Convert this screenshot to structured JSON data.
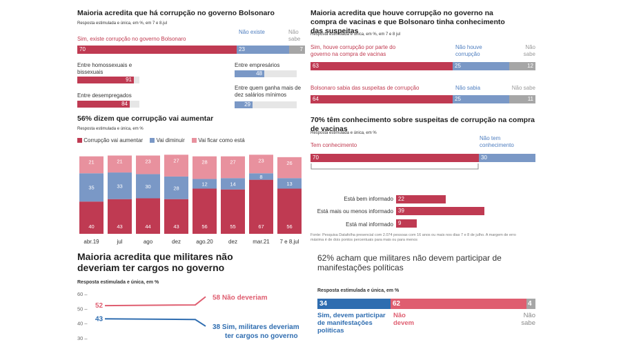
{
  "colors": {
    "red": "#bf3a52",
    "blue": "#7a98c6",
    "gray": "#a6a6a6",
    "pink": "#e8919e",
    "dark_blue": "#2f6db0",
    "light_red": "#df5e70"
  },
  "p1": {
    "title": "Maioria acredita que há corrupção no governo Bolsonaro",
    "subtitle": "Resposta estimulada e única, em %, em 7 e 8.jul",
    "labels": {
      "yes": "Sim, existe corrupção no governo Bolsonaro",
      "no": "Não existe",
      "nk": "Não sabe"
    },
    "values": {
      "yes": "70",
      "no": "23",
      "nk": "7"
    },
    "subgroups": [
      {
        "label": "Entre homossexuais e bissexuais",
        "value": "91"
      },
      {
        "label": "Entre desempregados",
        "value": "84"
      },
      {
        "label": "Entre empresários",
        "value": "48"
      },
      {
        "label": "Entre quem ganha mais de dez salários mínimos",
        "value": "29"
      }
    ]
  },
  "p2": {
    "title": "Maioria acredita que houve corrupção no governo na compra de vacinas e que Bolsonaro tinha conhecimento das suspeitas",
    "subtitle": "Resposta estimulada e única, em %, em 7 e 8 jul",
    "r1": {
      "yes_label": "Sim, houve corrupção por parte do governo na compra de vacinas",
      "no_label": "Não houve corrupção",
      "nk_label": "Não sabe",
      "yes": "63",
      "no": "25",
      "nk": "12"
    },
    "r2": {
      "yes_label": "Bolsonaro sabia das suspeitas de corrupção",
      "no_label": "Não sabia",
      "nk_label": "Não sabe",
      "yes": "64",
      "no": "25",
      "nk": "11"
    }
  },
  "p3": {
    "title": "56% dizem que corrupção vai aumentar",
    "subtitle": "Resposta estimulada e única, em %",
    "legend": [
      "Corrupção vai aumentar",
      "Vai diminuir",
      "Vai ficar como está"
    ]
  },
  "p4": {
    "title": "70% têm conhecimento sobre suspeitas de corrupção na compra de vacinas",
    "subtitle": "Resposta estimulada e única, em %",
    "yes_label": "Tem conhecimento",
    "no_label": "Não tem conhecimento",
    "yes": "70",
    "no": "30",
    "rows": [
      {
        "label": "Está bem informado",
        "value": "22"
      },
      {
        "label": "Está mais ou menos informado",
        "value": "39"
      },
      {
        "label": "Está mal informado",
        "value": "9"
      }
    ],
    "source": "Fonte: Pesquisa Datafolha presencial com 2.074 pessoas com 16 anos ou mais nos dias 7 e 8 de julho. A margem de erro máxima é de dois pontos percentuais para mais ou para menos"
  },
  "p5": {
    "title": "Maioria acredita que militares não deveriam ter cargos no governo",
    "subtitle": "Resposta estimulada e única, em %",
    "no_label": "Não deveriam",
    "yes_label": "Sim, militares deveriam ter cargos no governo"
  },
  "p6": {
    "title": "62% acham que militares não devem participar de manifestações políticas",
    "subtitle": "Resposta estimulada e única, em %",
    "yes_label": "Sim, devem participar de manifestações políticas",
    "no_label": "Não devem",
    "nk_label": "Não sabe",
    "yes": "34",
    "no": "62",
    "nk": "4"
  },
  "chart_data": [
    {
      "type": "bar",
      "title": "56% dizem que corrupção vai aumentar",
      "categories": [
        "abr.19",
        "jul",
        "ago",
        "dez",
        "ago.20",
        "dez",
        "mar.21",
        "7 e 8.jul"
      ],
      "series": [
        {
          "name": "Corrupção vai aumentar",
          "values": [
            40,
            43,
            44,
            43,
            56,
            55,
            67,
            56
          ]
        },
        {
          "name": "Vai diminuir",
          "values": [
            35,
            33,
            30,
            28,
            12,
            14,
            8,
            13
          ]
        },
        {
          "name": "Vai ficar como está",
          "values": [
            21,
            21,
            23,
            27,
            28,
            27,
            23,
            26
          ]
        }
      ],
      "stacked": true,
      "legend": "top-left"
    },
    {
      "type": "line",
      "title": "Maioria acredita que militares não deveriam ter cargos no governo",
      "ylim": [
        30,
        60
      ],
      "yticks": [
        "60",
        "50",
        "40",
        "30"
      ],
      "series": [
        {
          "name": "Não deveriam",
          "start": 52,
          "end": 58
        },
        {
          "name": "Sim, militares deveriam ter cargos no governo",
          "start": 43,
          "end": 38
        }
      ]
    }
  ]
}
